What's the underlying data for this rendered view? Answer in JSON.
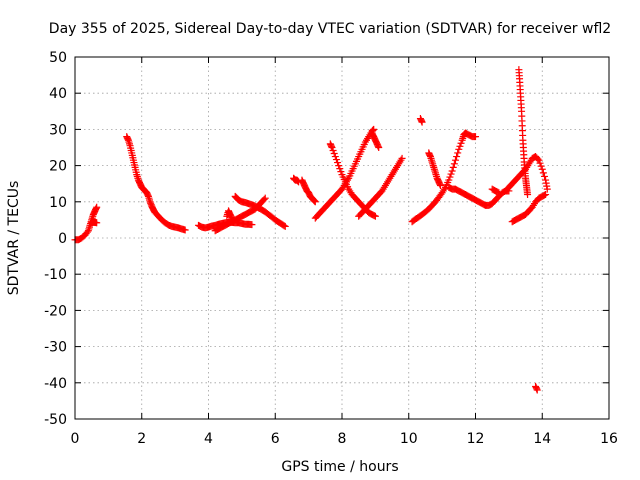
{
  "chart_data": {
    "type": "scatter",
    "title": "Day 355 of 2025, Sidereal Day-to-day VTEC variation (SDTVAR) for receiver wfl2",
    "xlabel": "GPS time / hours",
    "ylabel": "SDTVAR / TECUs",
    "xlim": [
      0,
      16
    ],
    "ylim": [
      -50,
      50
    ],
    "x_ticks": [
      0,
      2,
      4,
      6,
      8,
      10,
      12,
      14,
      16
    ],
    "y_ticks": [
      -50,
      -40,
      -30,
      -20,
      -10,
      0,
      10,
      20,
      30,
      40,
      50
    ],
    "x_tick_labels": [
      "0",
      "2",
      "4",
      "6",
      "8",
      "10",
      "12",
      "14",
      "16"
    ],
    "y_tick_labels": [
      "-50",
      "-40",
      "-30",
      "-20",
      "-10",
      "0",
      "10",
      "20",
      "30",
      "40",
      "50"
    ],
    "grid": true,
    "marker": "plus",
    "marker_color": "#ff0000",
    "series": [
      {
        "segments": [
          {
            "x": [
              0.0,
              0.1,
              0.2,
              0.3,
              0.4,
              0.45,
              0.5,
              0.55,
              0.6,
              0.65
            ],
            "y": [
              -0.5,
              -0.5,
              0.0,
              0.8,
              2.0,
              3.5,
              5.0,
              6.5,
              7.5,
              8.5
            ]
          },
          {
            "x": [
              0.5,
              0.55,
              0.6,
              0.65
            ],
            "y": [
              4.2,
              4.4,
              4.3,
              4.2
            ]
          },
          {
            "x": [
              1.55,
              1.6,
              1.65,
              1.7,
              1.75,
              1.8,
              1.85,
              1.9,
              1.95,
              2.0,
              2.05,
              2.1,
              2.15,
              2.2,
              2.25,
              2.3,
              2.35,
              2.4,
              2.5,
              2.6,
              2.7,
              2.8,
              2.9,
              3.0,
              3.1,
              3.2,
              3.3
            ],
            "y": [
              28.0,
              27.0,
              25.5,
              23.5,
              21.5,
              19.5,
              17.5,
              16.0,
              15.0,
              14.0,
              13.5,
              13.0,
              12.5,
              11.5,
              10.0,
              8.8,
              7.8,
              7.0,
              6.0,
              5.0,
              4.2,
              3.6,
              3.2,
              3.0,
              2.8,
              2.5,
              2.2
            ]
          },
          {
            "x": [
              3.7,
              3.8,
              3.9,
              4.0,
              4.1,
              4.2,
              4.3,
              4.4,
              4.5,
              4.6,
              4.7,
              4.8,
              4.9,
              5.0,
              5.1,
              5.2,
              5.3
            ],
            "y": [
              3.5,
              3.0,
              2.8,
              3.0,
              3.3,
              3.5,
              3.8,
              4.0,
              4.2,
              4.3,
              4.3,
              4.2,
              4.2,
              4.0,
              3.8,
              3.8,
              3.7
            ]
          },
          {
            "x": [
              4.2,
              4.3,
              4.4,
              4.5,
              4.6,
              4.7,
              4.8,
              4.9,
              5.0,
              5.1,
              5.2,
              5.3,
              5.4,
              5.5,
              5.6,
              5.7
            ],
            "y": [
              2.0,
              2.5,
              3.0,
              3.5,
              4.0,
              4.5,
              5.0,
              5.5,
              6.0,
              6.5,
              7.0,
              7.5,
              8.0,
              9.0,
              10.0,
              11.0
            ]
          },
          {
            "x": [
              4.55,
              4.6,
              4.65,
              4.7
            ],
            "y": [
              6.0,
              7.5,
              6.5,
              5.5
            ]
          },
          {
            "x": [
              4.8,
              4.85,
              4.9,
              5.0,
              5.1,
              5.2,
              5.3,
              5.4,
              5.5,
              5.6,
              5.7,
              5.8,
              5.9,
              6.0,
              6.1,
              6.2,
              6.3
            ],
            "y": [
              11.5,
              11.0,
              10.5,
              10.0,
              9.8,
              9.5,
              9.2,
              8.8,
              8.3,
              7.8,
              7.2,
              6.5,
              5.8,
              5.0,
              4.4,
              3.8,
              3.2
            ]
          },
          {
            "x": [
              6.55,
              6.6,
              6.65,
              6.7
            ],
            "y": [
              16.5,
              16.0,
              16.0,
              15.5
            ]
          },
          {
            "x": [
              6.8,
              6.85,
              6.9,
              6.95,
              7.0,
              7.05,
              7.1,
              7.15,
              7.2
            ],
            "y": [
              16.0,
              15.0,
              14.0,
              13.0,
              12.5,
              11.5,
              11.0,
              10.5,
              10.0
            ]
          },
          {
            "x": [
              7.2,
              7.3,
              7.4,
              7.5,
              7.6,
              7.7,
              7.8,
              7.9,
              8.0,
              8.1,
              8.2,
              8.3,
              8.4,
              8.5,
              8.6,
              8.7,
              8.8,
              8.9,
              8.95
            ],
            "y": [
              5.5,
              6.5,
              7.5,
              8.5,
              9.5,
              10.5,
              11.5,
              12.5,
              13.5,
              15.0,
              16.5,
              18.5,
              20.5,
              22.5,
              24.5,
              26.5,
              28.0,
              29.5,
              30.0
            ]
          },
          {
            "x": [
              7.65,
              7.7,
              7.8,
              7.9,
              8.0,
              8.1,
              8.2,
              8.3,
              8.4,
              8.5,
              8.6,
              8.7,
              8.8,
              8.9,
              9.0
            ],
            "y": [
              26.0,
              25.0,
              22.5,
              20.0,
              17.5,
              15.5,
              13.5,
              12.0,
              11.0,
              10.0,
              9.0,
              8.0,
              7.0,
              6.5,
              6.0
            ]
          },
          {
            "x": [
              8.9,
              8.95,
              9.0,
              9.05,
              9.1
            ],
            "y": [
              29.0,
              28.0,
              27.0,
              26.0,
              25.0
            ]
          },
          {
            "x": [
              8.5,
              8.6,
              8.7,
              8.8,
              8.9,
              9.0,
              9.1,
              9.2,
              9.3,
              9.4,
              9.5,
              9.6,
              9.7,
              9.8
            ],
            "y": [
              6.0,
              7.0,
              8.0,
              9.0,
              10.0,
              11.0,
              12.0,
              13.0,
              14.5,
              16.0,
              17.5,
              19.0,
              20.5,
              22.0
            ]
          },
          {
            "x": [
              10.35,
              10.4
            ],
            "y": [
              33.0,
              32.0
            ]
          },
          {
            "x": [
              10.1,
              10.2,
              10.3,
              10.4,
              10.5,
              10.6,
              10.7,
              10.8,
              10.9,
              11.0,
              11.1,
              11.2,
              11.3,
              11.4,
              11.5,
              11.6,
              11.65,
              11.7,
              11.8,
              11.9,
              12.0
            ],
            "y": [
              4.5,
              5.2,
              5.8,
              6.5,
              7.2,
              8.0,
              9.0,
              10.0,
              11.2,
              12.5,
              14.0,
              16.0,
              18.5,
              21.5,
              24.5,
              27.0,
              28.5,
              29.0,
              28.5,
              28.0,
              28.0
            ]
          },
          {
            "x": [
              10.6,
              10.65,
              10.7,
              10.75,
              10.8,
              10.85,
              10.9,
              10.95
            ],
            "y": [
              23.5,
              22.5,
              21.0,
              19.5,
              18.0,
              16.5,
              15.5,
              14.5
            ]
          },
          {
            "x": [
              11.2,
              11.3,
              11.4,
              11.5,
              11.6,
              11.7,
              11.8,
              11.9,
              12.0,
              12.1,
              12.2,
              12.3,
              12.4,
              12.5,
              12.6,
              12.7,
              12.8,
              12.9,
              13.0
            ],
            "y": [
              14.0,
              13.5,
              13.5,
              13.0,
              12.5,
              12.0,
              11.5,
              11.0,
              10.5,
              10.0,
              9.5,
              9.0,
              9.0,
              9.5,
              10.5,
              11.5,
              12.5,
              13.0,
              13.0
            ]
          },
          {
            "x": [
              12.5,
              12.6,
              12.7
            ],
            "y": [
              13.5,
              13.0,
              12.5
            ]
          },
          {
            "x": [
              13.1,
              13.2,
              13.3,
              13.4,
              13.5,
              13.6,
              13.7,
              13.8,
              13.9,
              14.0,
              14.1
            ],
            "y": [
              4.5,
              5.0,
              5.5,
              6.0,
              6.5,
              7.5,
              8.5,
              10.0,
              11.0,
              11.5,
              12.0
            ]
          },
          {
            "x": [
              12.9,
              13.0,
              13.1,
              13.2,
              13.3,
              13.4,
              13.5,
              13.6,
              13.7,
              13.8,
              13.9,
              14.0,
              14.1,
              14.15
            ],
            "y": [
              13.0,
              14.0,
              15.0,
              16.0,
              17.0,
              18.0,
              19.0,
              20.5,
              22.0,
              22.5,
              21.5,
              19.0,
              16.0,
              13.5
            ]
          },
          {
            "x": [
              13.3,
              13.32,
              13.34,
              13.36,
              13.38,
              13.4,
              13.42,
              13.44,
              13.46,
              13.48,
              13.5,
              13.52,
              13.54,
              13.56
            ],
            "y": [
              46.5,
              44.0,
              41.0,
              38.0,
              35.0,
              31.0,
              27.0,
              24.0,
              21.0,
              18.5,
              16.5,
              15.0,
              13.5,
              12.0
            ]
          },
          {
            "x": [
              13.8,
              13.85
            ],
            "y": [
              -41.0,
              -42.0
            ]
          }
        ]
      }
    ]
  }
}
